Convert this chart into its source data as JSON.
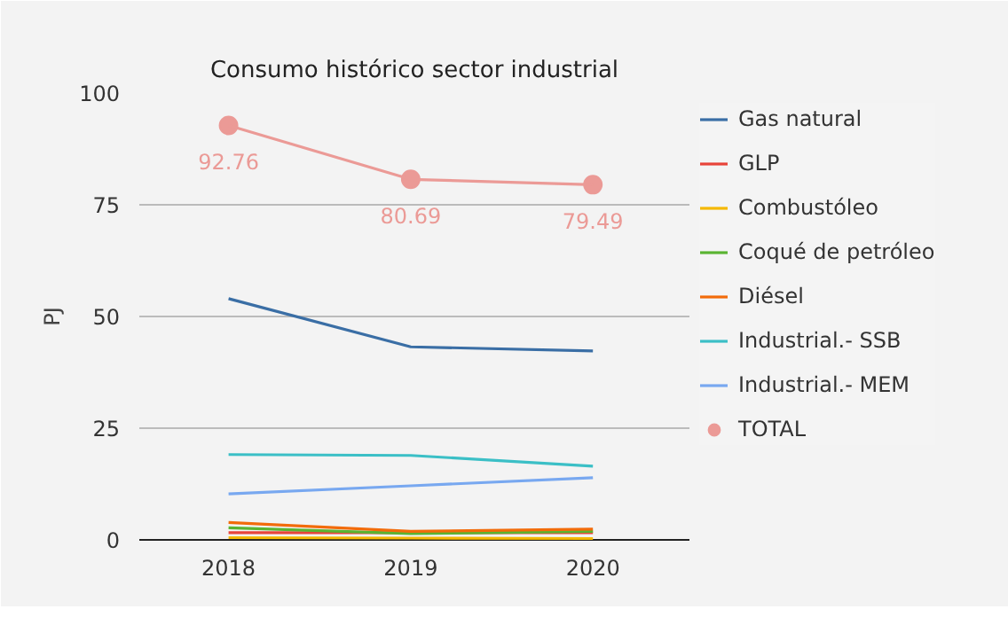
{
  "chart_data": {
    "type": "line",
    "title": "Consumo histórico sector industrial",
    "ylabel": "PJ",
    "categories": [
      "2018",
      "2019",
      "2020"
    ],
    "series": [
      {
        "name": "Gas natural",
        "color": "#3a6ea5",
        "values": [
          54.0,
          43.2,
          42.3
        ]
      },
      {
        "name": "GLP",
        "color": "#e8443a",
        "values": [
          1.6,
          1.6,
          1.6
        ]
      },
      {
        "name": "Combustóleo",
        "color": "#f5b800",
        "values": [
          0.5,
          0.4,
          0.3
        ]
      },
      {
        "name": "Coqué de petróleo",
        "color": "#5ab432",
        "values": [
          2.7,
          1.4,
          1.9
        ]
      },
      {
        "name": "Diésel",
        "color": "#f26b0a",
        "values": [
          3.9,
          1.9,
          2.4
        ]
      },
      {
        "name": "Industrial.- SSB",
        "color": "#3bbfc6",
        "values": [
          19.1,
          18.9,
          16.5
        ]
      },
      {
        "name": "Industrial.- MEM",
        "color": "#78a8f0",
        "values": [
          10.3,
          12.1,
          13.9
        ]
      },
      {
        "name": "TOTAL",
        "color": "#eb9a96",
        "values": [
          92.76,
          80.69,
          79.49
        ],
        "marker": "circle",
        "data_labels": true
      }
    ],
    "ylim": [
      0,
      100
    ],
    "yticks": [
      0,
      25,
      50,
      75,
      100
    ],
    "grid": "y",
    "legend": "right",
    "line_style": "solid"
  }
}
